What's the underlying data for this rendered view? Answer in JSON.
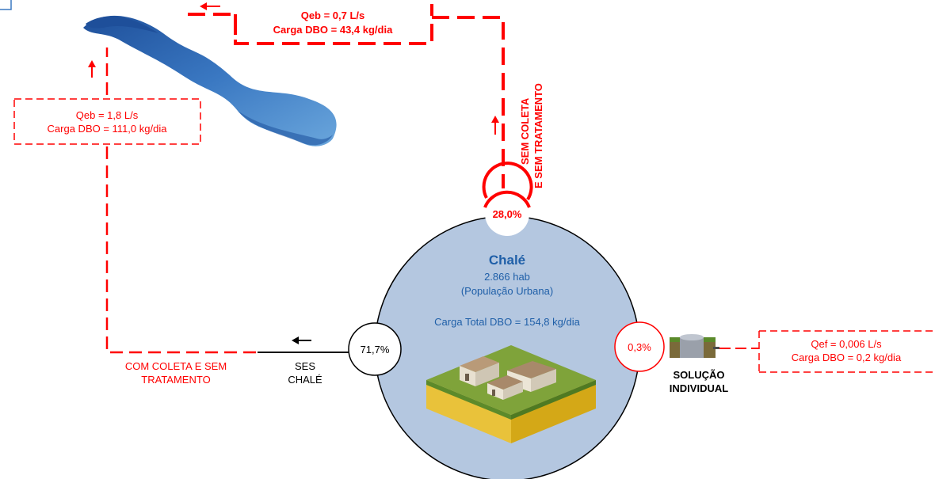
{
  "city": {
    "name": "Chalé",
    "population": "2.866 hab",
    "population_type": "(População Urbana)",
    "total_load": "Carga Total DBO = 154,8 kg/dia"
  },
  "nodes": {
    "collected_pct": "71,7%",
    "uncollected_pct": "28,0%",
    "individual_pct": "0,3%"
  },
  "ses": {
    "line1": "SES",
    "line2": "CHALÉ"
  },
  "collected_path": {
    "label_line1": "COM COLETA E SEM",
    "label_line2": "TRATAMENTO",
    "flow": "Qeb = 1,8 L/s",
    "load": "Carga DBO = 111,0 kg/dia"
  },
  "uncollected_path": {
    "label_line1": "SEM COLETA",
    "label_line2": "E SEM TRATAMENTO",
    "flow": "Qeb = 0,7 L/s",
    "load": "Carga DBO = 43,4 kg/dia"
  },
  "individual_path": {
    "label_line1": "SOLUÇÃO",
    "label_line2": "INDIVIDUAL",
    "flow": "Qef = 0,006 L/s",
    "load": "Carga DBO = 0,2 kg/dia"
  },
  "colors": {
    "red": "#ff0000",
    "blue_text": "#1f5fa8",
    "circle_fill": "#b4c7e0",
    "river": "#3a78c2"
  },
  "icons": {
    "river": "river-illustration",
    "city": "city-houses-illustration",
    "tank": "septic-tank-icon"
  }
}
